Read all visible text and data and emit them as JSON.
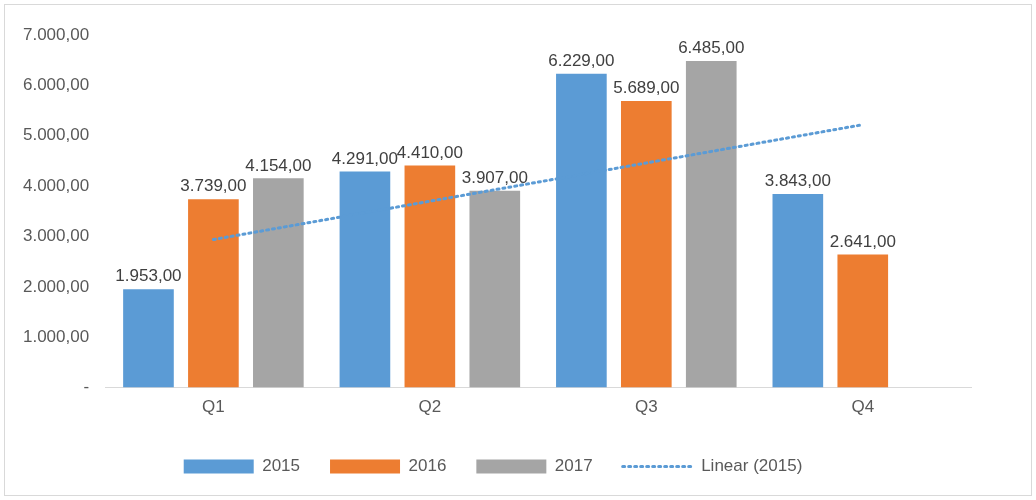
{
  "chart_data": {
    "type": "bar",
    "categories": [
      "Q1",
      "Q2",
      "Q3",
      "Q4"
    ],
    "series": [
      {
        "name": "2015",
        "color": "#5b9bd5",
        "values": [
          1953,
          4291,
          6229,
          3843
        ],
        "value_labels": [
          "1.953,00",
          "4.291,00",
          "6.229,00",
          "3.843,00"
        ]
      },
      {
        "name": "2016",
        "color": "#ed7d31",
        "values": [
          3739,
          4410,
          5689,
          2641
        ],
        "value_labels": [
          "3.739,00",
          "4.410,00",
          "5.689,00",
          "2.641,00"
        ]
      },
      {
        "name": "2017",
        "color": "#a5a5a5",
        "values": [
          4154,
          3907,
          6485,
          null
        ],
        "value_labels": [
          "4.154,00",
          "3.907,00",
          "6.485,00",
          null
        ]
      },
      {
        "name": "Linear (2015)",
        "type": "line",
        "color": "#5b9bd5",
        "values": [
          2940,
          3700,
          4460,
          5220
        ],
        "line_style": "dotted",
        "marker": "none"
      }
    ],
    "ylim": [
      0,
      7000
    ],
    "yticks": [
      {
        "value": 0,
        "label": "-"
      },
      {
        "value": 1000,
        "label": "1.000,00"
      },
      {
        "value": 2000,
        "label": "2.000,00"
      },
      {
        "value": 3000,
        "label": "3.000,00"
      },
      {
        "value": 4000,
        "label": "4.000,00"
      },
      {
        "value": 5000,
        "label": "5.000,00"
      },
      {
        "value": 6000,
        "label": "6.000,00"
      },
      {
        "value": 7000,
        "label": "7.000,00"
      }
    ],
    "grid": false,
    "legend": "bottom"
  }
}
